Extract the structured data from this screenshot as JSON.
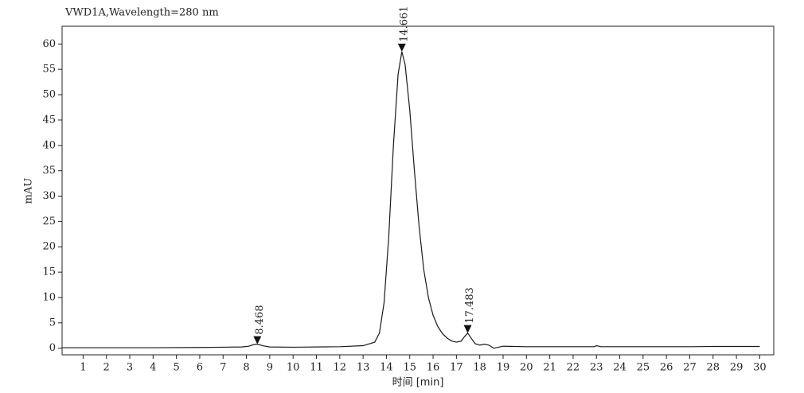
{
  "chart_data": {
    "type": "line",
    "title": "VWD1A,Wavelength=280 nm",
    "x_label": "时间 [min]",
    "y_label": "mAU",
    "xlim": [
      0.1,
      30.6
    ],
    "ylim": [
      -1.3,
      63.5
    ],
    "xticks": [
      1,
      2,
      3,
      4,
      5,
      6,
      7,
      8,
      9,
      10,
      11,
      12,
      13,
      14,
      15,
      16,
      17,
      18,
      19,
      20,
      21,
      22,
      23,
      24,
      25,
      26,
      27,
      28,
      29,
      30
    ],
    "yticks": [
      0,
      5,
      10,
      15,
      20,
      25,
      30,
      35,
      40,
      45,
      50,
      55,
      60
    ],
    "x": [
      0.1,
      2,
      4,
      6,
      7,
      7.8,
      8.1,
      8.3,
      8.468,
      8.7,
      9,
      10,
      11,
      12,
      13,
      13.5,
      13.7,
      13.9,
      14.1,
      14.3,
      14.5,
      14.661,
      14.8,
      15.0,
      15.2,
      15.4,
      15.6,
      15.8,
      16.0,
      16.2,
      16.4,
      16.6,
      16.8,
      17.0,
      17.2,
      17.35,
      17.483,
      17.6,
      17.8,
      18.0,
      18.2,
      18.4,
      18.6,
      18.8,
      19,
      20,
      21,
      22,
      22.9,
      23.0,
      23.2,
      25,
      27,
      28,
      29,
      30
    ],
    "series": [
      {
        "color": "#1a1a1a",
        "values": [
          0.1,
          0.1,
          0.1,
          0.15,
          0.2,
          0.25,
          0.4,
          0.7,
          0.8,
          0.5,
          0.25,
          0.2,
          0.25,
          0.3,
          0.5,
          1.2,
          3,
          9,
          22,
          40,
          54,
          58.5,
          56,
          47,
          35,
          24,
          15.5,
          10,
          6.5,
          4.3,
          2.9,
          2.0,
          1.4,
          1.2,
          1.4,
          2.3,
          3.0,
          2.2,
          0.9,
          0.6,
          0.8,
          0.6,
          0.0,
          0.2,
          0.4,
          0.3,
          0.3,
          0.3,
          0.3,
          0.5,
          0.3,
          0.3,
          0.3,
          0.35,
          0.35,
          0.35
        ]
      }
    ],
    "peaks": {
      "x": [
        8.468,
        14.661,
        17.483
      ],
      "y": [
        0.8,
        58.5,
        3.0
      ],
      "labels": [
        "8.468",
        "14.661",
        "17.483"
      ]
    }
  }
}
